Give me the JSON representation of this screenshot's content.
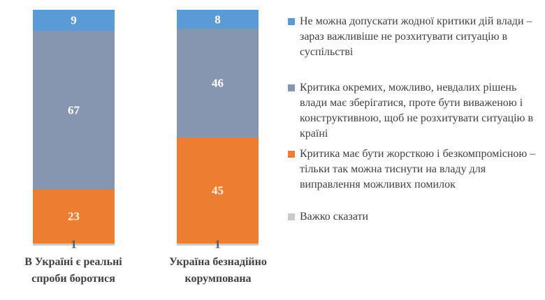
{
  "chart_data": {
    "type": "bar",
    "stacked": true,
    "orientation": "vertical",
    "title": "",
    "xlabel": "",
    "ylabel": "",
    "ylim": [
      0,
      100
    ],
    "grid": false,
    "legend_position": "right",
    "categories": [
      "В Україні є реальні спроби боротися",
      "Україна безнадійно корумпована"
    ],
    "series": [
      {
        "name": "Не можна допускати жодної критики дій влади – зараз важливіше не розхитувати ситуацію в суспільстві",
        "color": "#5B9BD5",
        "label_color": "#FFFFFF",
        "values": [
          9,
          8
        ]
      },
      {
        "name": "Критика окремих, можливо, невдалих рішень влади має зберігатися, проте бути виваженою і конструктивною, щоб не розхитувати ситуацію в країні",
        "color": "#8796B0",
        "label_color": "#FFFFFF",
        "values": [
          67,
          46
        ]
      },
      {
        "name": "Критика має бути жорсткою і безкомпромісною – тільки так можна тиснути на владу для виправлення можливих помилок",
        "color": "#ED7D31",
        "label_color": "#FAF2E6",
        "values": [
          23,
          45
        ]
      },
      {
        "name": "Важко сказати",
        "color": "#C9C9C9",
        "label_color": "#595959",
        "values": [
          1,
          1
        ]
      }
    ],
    "text_color": "#404040",
    "category_label_color": "#404040"
  }
}
